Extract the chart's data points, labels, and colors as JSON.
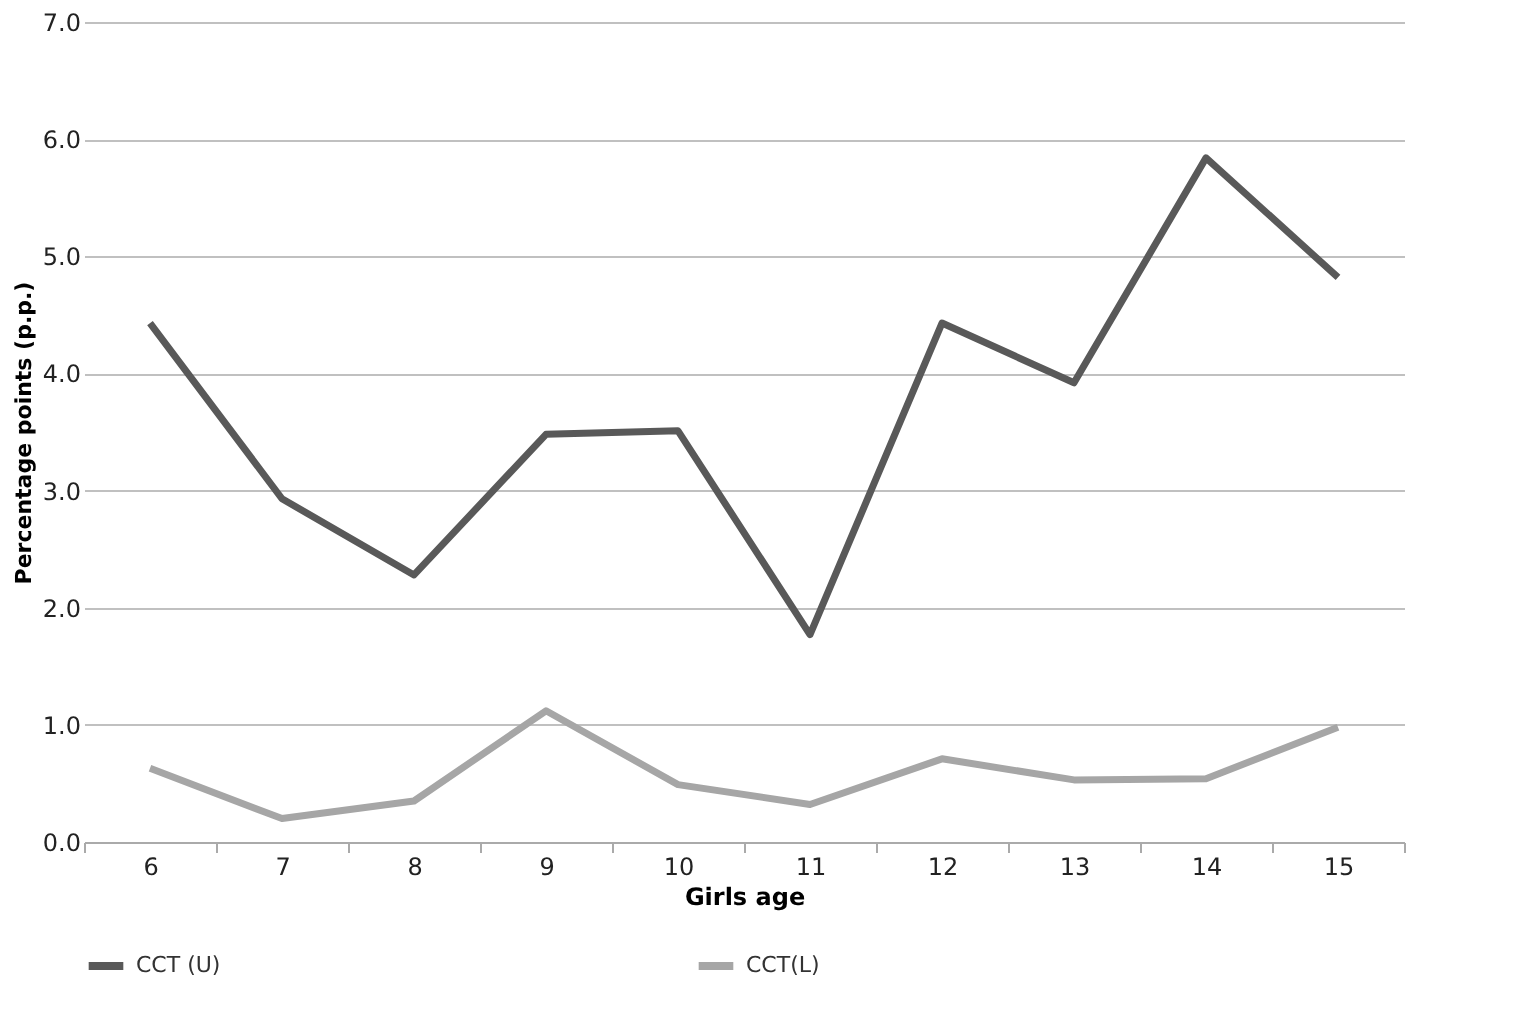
{
  "chart_data": {
    "type": "line",
    "xlabel": "Girls age",
    "ylabel": "Percentage points (p.p.)",
    "categories": [
      "6",
      "7",
      "8",
      "9",
      "10",
      "11",
      "12",
      "13",
      "14",
      "15"
    ],
    "series": [
      {
        "name": "CCT (U)",
        "color": "#595959",
        "values": [
          4.43,
          2.93,
          2.28,
          3.48,
          3.51,
          1.77,
          4.43,
          3.92,
          5.84,
          4.82
        ]
      },
      {
        "name": "CCT(L)",
        "color": "#a6a6a6",
        "values": [
          0.63,
          0.2,
          0.35,
          1.12,
          0.49,
          0.32,
          0.71,
          0.53,
          0.54,
          0.98
        ]
      }
    ],
    "ylim": [
      0,
      7
    ],
    "yticks": [
      {
        "value": 0,
        "label": "0.0"
      },
      {
        "value": 1,
        "label": "1.0"
      },
      {
        "value": 2,
        "label": "2.0"
      },
      {
        "value": 3,
        "label": "3.0"
      },
      {
        "value": 4,
        "label": "4.0"
      },
      {
        "value": 5,
        "label": "5.0"
      },
      {
        "value": 6,
        "label": "6.0"
      },
      {
        "value": 7,
        "label": "7.0"
      }
    ],
    "grid": "y",
    "legend": "bottom",
    "marker": "none",
    "line_style": "solid"
  }
}
